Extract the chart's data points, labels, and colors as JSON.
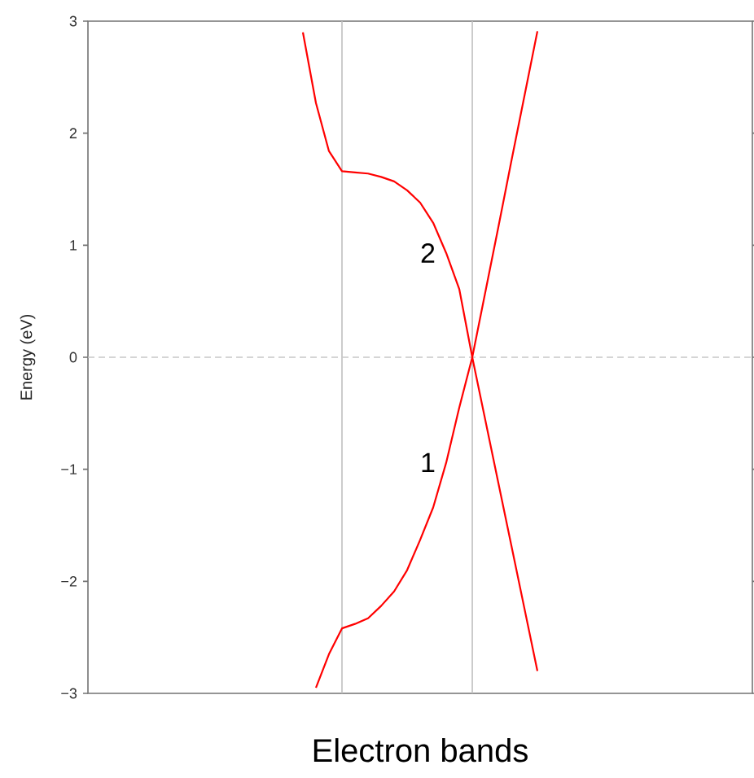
{
  "chart_data": {
    "type": "line",
    "xlabel": "Electron bands",
    "ylabel": "Energy (eV)",
    "categories": [
      null,
      null,
      null,
      null,
      null,
      null,
      null,
      null,
      null,
      null,
      null,
      null,
      null,
      null,
      null,
      null,
      null,
      null,
      null,
      null,
      null,
      null,
      null,
      null,
      null,
      null,
      null,
      null,
      null,
      null,
      null,
      null,
      null,
      null,
      null,
      null,
      null,
      null,
      null,
      null,
      null,
      null,
      null,
      null,
      null,
      null,
      null,
      null,
      null,
      null,
      null
    ],
    "ylim": [
      -3,
      3
    ],
    "yticks": [
      {
        "value": -3,
        "label": "−3"
      },
      {
        "value": -2,
        "label": "−2"
      },
      {
        "value": -1,
        "label": "−1"
      },
      {
        "value": 0,
        "label": "0"
      },
      {
        "value": 1,
        "label": "1"
      },
      {
        "value": 2,
        "label": "2"
      },
      {
        "value": 3,
        "label": "3"
      }
    ],
    "tick_labels": "y",
    "grid": false,
    "series": [
      {
        "name": "2",
        "color": "#ff0000",
        "values": [
          null,
          null,
          null,
          null,
          null,
          null,
          null,
          null,
          null,
          null,
          null,
          null,
          null,
          null,
          null,
          null,
          2.9,
          2.27,
          1.84,
          1.66,
          1.65,
          1.64,
          1.61,
          1.57,
          1.49,
          1.38,
          1.2,
          0.93,
          0.61,
          0,
          -0.56,
          -1.12,
          -1.68,
          -2.24,
          -2.8,
          null,
          null,
          null,
          null,
          null,
          null,
          null,
          null,
          null,
          null,
          null,
          null,
          null,
          null,
          null,
          null
        ]
      },
      {
        "name": "1",
        "color": "#ff0000",
        "values": [
          null,
          null,
          null,
          null,
          null,
          null,
          null,
          null,
          null,
          null,
          null,
          null,
          null,
          null,
          null,
          null,
          null,
          -2.95,
          -2.65,
          -2.42,
          -2.38,
          -2.33,
          -2.22,
          -2.09,
          -1.9,
          -1.63,
          -1.34,
          -0.94,
          -0.45,
          0,
          0.58,
          1.16,
          1.75,
          2.33,
          2.91,
          null,
          null,
          null,
          null,
          null,
          null,
          null,
          null,
          null,
          null,
          null,
          null,
          null,
          null,
          null,
          null
        ]
      }
    ],
    "ref_lines": [
      {
        "axis": "y",
        "value": 0,
        "color": "#c8c8c8",
        "line_style": "dashed"
      }
    ]
  }
}
